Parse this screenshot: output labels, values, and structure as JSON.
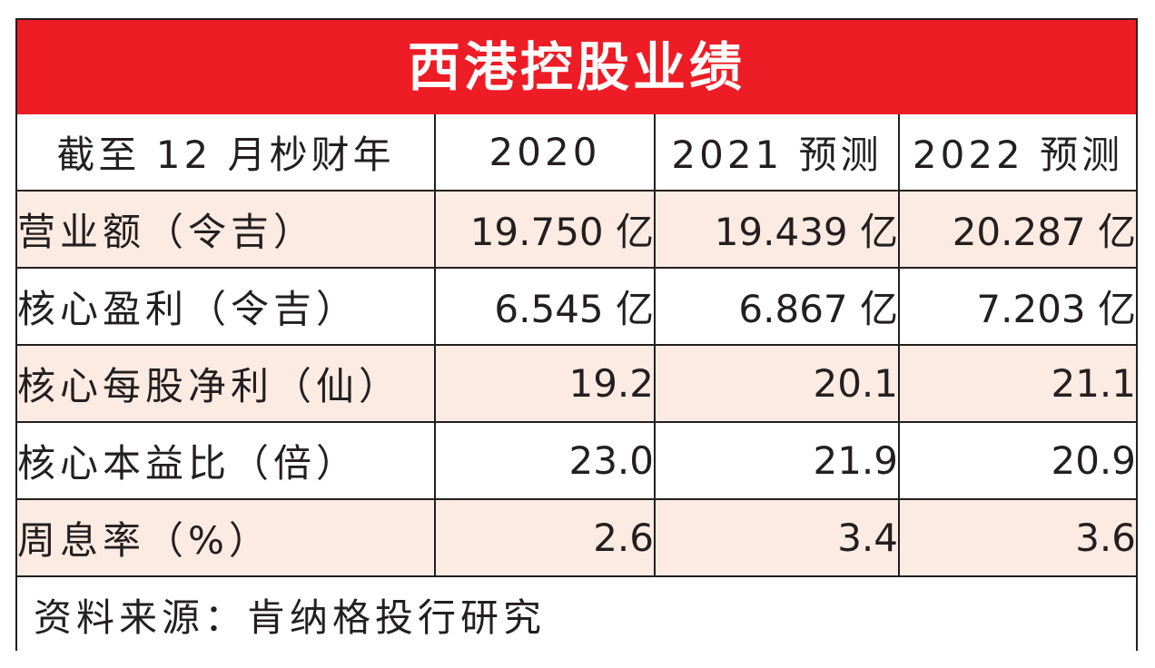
{
  "colors": {
    "title_bg": "#ee1c25",
    "title_text": "#ffffff",
    "shaded_row_bg": "#fbebe2",
    "border": "#231f20"
  },
  "table": {
    "title": "西港控股业绩",
    "columns": [
      "截至 12 月杪财年",
      "2020",
      "2021 预测",
      "2022 预测"
    ],
    "rows": [
      {
        "label": "营业额（令吉）",
        "values": [
          "19.750 亿",
          "19.439 亿",
          "20.287 亿"
        ]
      },
      {
        "label": "核心盈利（令吉）",
        "values": [
          "6.545 亿",
          "6.867 亿",
          "7.203 亿"
        ]
      },
      {
        "label": "核心每股净利（仙）",
        "values": [
          "19.2",
          "20.1",
          "21.1"
        ]
      },
      {
        "label": "核心本益比（倍）",
        "values": [
          "23.0",
          "21.9",
          "20.9"
        ]
      },
      {
        "label": "周息率（%）",
        "values": [
          "2.6",
          "3.4",
          "3.6"
        ]
      }
    ],
    "source": "资料来源：肯纳格投行研究"
  }
}
